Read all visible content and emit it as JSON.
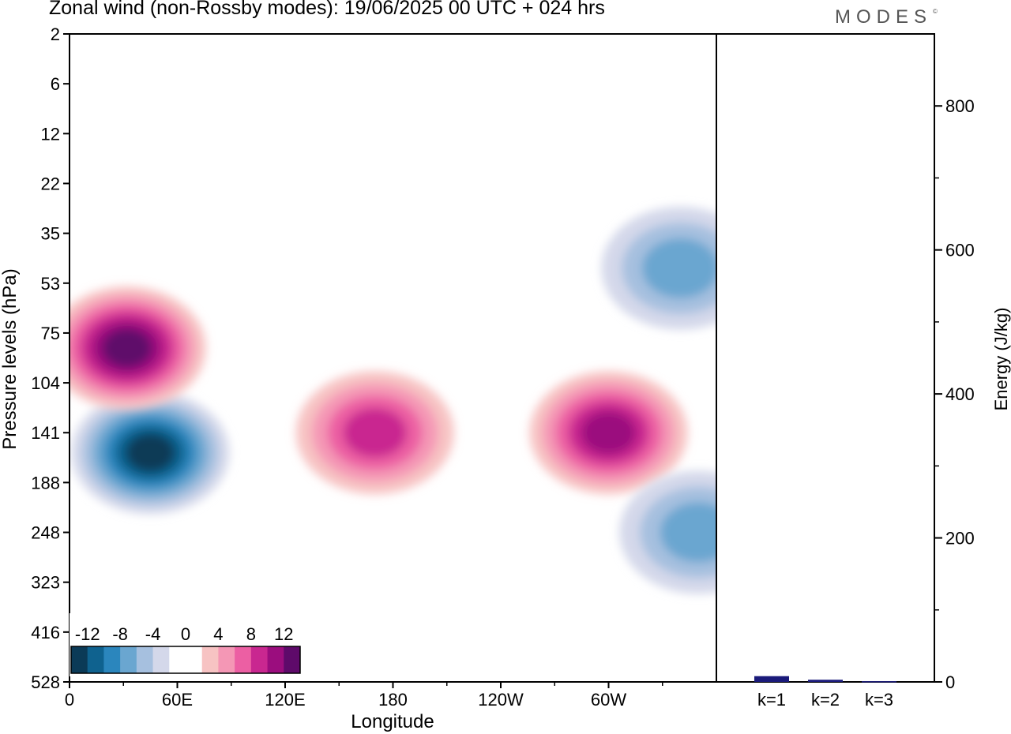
{
  "header": {
    "title": "Zonal wind (non-Rossby modes):  19/06/2025  00 UTC  + 024 hrs",
    "logo": "MODES",
    "logo_mark": "©"
  },
  "chart_data": [
    {
      "type": "heatmap",
      "title": "Zonal wind (non-Rossby modes):  19/06/2025  00 UTC  + 024 hrs",
      "xlabel": "Longitude",
      "ylabel": "Pressure levels (hPa)",
      "x_ticks": [
        "0",
        "60E",
        "120E",
        "180",
        "120W",
        "60W"
      ],
      "x_tick_values": [
        0,
        60,
        120,
        180,
        240,
        300
      ],
      "xlim": [
        0,
        360
      ],
      "y_ticks": [
        "2",
        "6",
        "12",
        "22",
        "35",
        "53",
        "75",
        "104",
        "141",
        "188",
        "248",
        "323",
        "416",
        "528"
      ],
      "y_ticks_top_to_bottom": true,
      "colorbar_labels": [
        "-12",
        "-8",
        "-4",
        "0",
        "4",
        "8",
        "12"
      ],
      "colorbar_colors": [
        "#0b3a57",
        "#0f628f",
        "#2b86bd",
        "#6aa6d0",
        "#a6c0df",
        "#d4d8ea",
        "#ffffff",
        "#ffffff",
        "#f7c3c3",
        "#f497b5",
        "#ec5fa3",
        "#c92790",
        "#9b0d7e",
        "#5e0a6a"
      ],
      "features": [
        {
          "lon": 45,
          "level_index": 8.4,
          "sign": "negative",
          "peak": -14
        },
        {
          "lon": 32,
          "level_index": 6.3,
          "sign": "positive",
          "peak": 11
        },
        {
          "lon": 170,
          "level_index": 8.0,
          "sign": "positive",
          "peak": 8
        },
        {
          "lon": 300,
          "level_index": 8.0,
          "sign": "positive",
          "peak": 10
        },
        {
          "lon": 350,
          "level_index": 10.0,
          "sign": "negative",
          "peak": -6
        },
        {
          "lon": 340,
          "level_index": 4.7,
          "sign": "negative",
          "peak": -5
        }
      ]
    },
    {
      "type": "bar",
      "categories": [
        "k=1",
        "k=2",
        "k=3"
      ],
      "values": [
        8,
        3,
        1
      ],
      "ylabel": "Energy (J/kg)",
      "ylim": [
        0,
        900
      ],
      "y_ticks": [
        0,
        200,
        400,
        600,
        800
      ],
      "colors": {
        "bar": "#1a1a7a"
      }
    }
  ]
}
